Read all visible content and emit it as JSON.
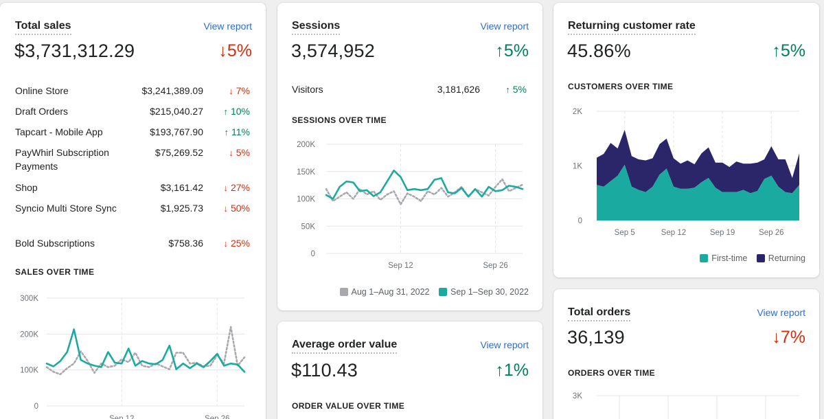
{
  "total_sales": {
    "title": "Total sales",
    "view_report": "View report",
    "value": "$3,731,312.29",
    "delta": "↓5%",
    "rows": [
      {
        "name": "Online Store",
        "amount": "$3,241,389.09",
        "arrow": "↓",
        "change": "7%",
        "dir": "down"
      },
      {
        "name": "Draft Orders",
        "amount": "$215,040.27",
        "arrow": "↑",
        "change": "10%",
        "dir": "up"
      },
      {
        "name": "Tapcart - Mobile App",
        "amount": "$193,767.90",
        "arrow": "↑",
        "change": "11%",
        "dir": "up"
      },
      {
        "name": "PayWhirl Subscription Payments",
        "amount": "$75,269.52",
        "arrow": "↓",
        "change": "5%",
        "dir": "down"
      },
      {
        "name": "Shop",
        "amount": "$3,161.42",
        "arrow": "↓",
        "change": "27%",
        "dir": "down"
      },
      {
        "name": "Syncio Multi Store Sync",
        "amount": "$1,925.73",
        "arrow": "↓",
        "change": "50%",
        "dir": "down"
      },
      {
        "name": "Bold Subscriptions",
        "amount": "$758.36",
        "arrow": "↓",
        "change": "25%",
        "dir": "down"
      }
    ],
    "chart_label": "SALES OVER TIME"
  },
  "sessions": {
    "title": "Sessions",
    "view_report": "View report",
    "value": "3,574,952",
    "delta": "↑5%",
    "visitors_label": "Visitors",
    "visitors_value": "3,181,626",
    "visitors_arrow": "↑",
    "visitors_change": "5%",
    "chart_label": "SESSIONS OVER TIME",
    "legend_prev": "Aug 1–Aug 31, 2022",
    "legend_curr": "Sep 1–Sep 30, 2022"
  },
  "returning": {
    "title": "Returning customer rate",
    "value": "45.86%",
    "delta": "↑5%",
    "chart_label": "CUSTOMERS OVER TIME",
    "legend_first": "First-time",
    "legend_returning": "Returning"
  },
  "aov": {
    "title": "Average order value",
    "view_report": "View report",
    "value": "$110.43",
    "delta": "↑1%",
    "chart_label": "ORDER VALUE OVER TIME"
  },
  "orders": {
    "title": "Total orders",
    "view_report": "View report",
    "value": "36,139",
    "delta": "↓7%",
    "chart_label": "ORDERS OVER TIME"
  },
  "colors": {
    "teal": "#1baaa0",
    "navy": "#2b2669",
    "prev_gray": "#a8a8ad",
    "up": "#008060",
    "down": "#d72c0d",
    "link": "#2c6ecb"
  },
  "chart_data": [
    {
      "type": "line",
      "id": "sales",
      "ylim": [
        0,
        300000
      ],
      "yticks": [
        "0",
        "100K",
        "200K",
        "300K"
      ],
      "xticks": [
        {
          "label": "Sep 12",
          "x": 12
        },
        {
          "label": "Sep 26",
          "x": 26
        }
      ],
      "x": [
        1,
        2,
        3,
        4,
        5,
        6,
        7,
        8,
        9,
        10,
        11,
        12,
        13,
        14,
        15,
        16,
        17,
        18,
        19,
        20,
        21,
        22,
        23,
        24,
        25,
        26,
        27,
        28,
        29,
        30
      ],
      "series": [
        {
          "name": "current",
          "values": [
            118000,
            110000,
            125000,
            150000,
            213000,
            128000,
            118000,
            112000,
            108000,
            150000,
            120000,
            118000,
            160000,
            112000,
            125000,
            118000,
            116000,
            128000,
            168000,
            102000,
            118000,
            105000,
            118000,
            108000,
            125000,
            145000,
            112000,
            118000,
            115000,
            95000
          ]
        },
        {
          "name": "previous",
          "values": [
            108000,
            95000,
            88000,
            105000,
            118000,
            152000,
            125000,
            92000,
            118000,
            108000,
            112000,
            130000,
            122000,
            148000,
            112000,
            108000,
            118000,
            110000,
            102000,
            148000,
            148000,
            118000,
            120000,
            110000,
            112000,
            142000,
            118000,
            220000,
            112000,
            135000
          ]
        }
      ]
    },
    {
      "type": "line",
      "id": "sessions",
      "ylim": [
        0,
        200000
      ],
      "yticks": [
        "0",
        "50K",
        "100K",
        "150K",
        "200K"
      ],
      "xticks": [
        {
          "label": "Sep 12",
          "x": 12
        },
        {
          "label": "Sep 26",
          "x": 26
        }
      ],
      "x": [
        1,
        2,
        3,
        4,
        5,
        6,
        7,
        8,
        9,
        10,
        11,
        12,
        13,
        14,
        15,
        16,
        17,
        18,
        19,
        20,
        21,
        22,
        23,
        24,
        25,
        26,
        27,
        28,
        29,
        30
      ],
      "series": [
        {
          "name": "Sep 1–Sep 30, 2022",
          "values": [
            107000,
            100000,
            122000,
            132000,
            130000,
            114000,
            116000,
            105000,
            112000,
            132000,
            152000,
            140000,
            116000,
            118000,
            116000,
            118000,
            135000,
            138000,
            112000,
            110000,
            120000,
            104000,
            118000,
            104000,
            122000,
            114000,
            116000,
            124000,
            122000,
            118000
          ]
        },
        {
          "name": "Aug 1–Aug 31, 2022",
          "values": [
            118000,
            96000,
            104000,
            112000,
            100000,
            118000,
            108000,
            114000,
            98000,
            108000,
            114000,
            90000,
            110000,
            104000,
            96000,
            114000,
            108000,
            120000,
            104000,
            112000,
            122000,
            104000,
            118000,
            112000,
            106000,
            122000,
            136000,
            114000,
            120000,
            126000
          ]
        }
      ]
    },
    {
      "type": "area",
      "id": "customers",
      "ylim": [
        0,
        2000
      ],
      "yticks": [
        "0",
        "1K",
        "2K"
      ],
      "xticks": [
        {
          "label": "Sep 5",
          "x": 5
        },
        {
          "label": "Sep 12",
          "x": 12
        },
        {
          "label": "Sep 19",
          "x": 19
        },
        {
          "label": "Sep 26",
          "x": 26
        }
      ],
      "x": [
        1,
        2,
        3,
        4,
        5,
        6,
        7,
        8,
        9,
        10,
        11,
        12,
        13,
        14,
        15,
        16,
        17,
        18,
        19,
        20,
        21,
        22,
        23,
        24,
        25,
        26,
        27,
        28,
        29,
        30
      ],
      "series": [
        {
          "name": "First-time",
          "values": [
            650,
            620,
            720,
            820,
            1020,
            620,
            560,
            520,
            620,
            840,
            950,
            620,
            580,
            580,
            600,
            700,
            780,
            600,
            520,
            520,
            520,
            560,
            500,
            540,
            760,
            820,
            620,
            520,
            500,
            650
          ]
        },
        {
          "name": "Returning",
          "values": [
            500,
            600,
            700,
            500,
            640,
            560,
            560,
            580,
            520,
            560,
            550,
            520,
            460,
            520,
            430,
            530,
            560,
            460,
            540,
            460,
            560,
            480,
            540,
            520,
            360,
            540,
            500,
            600,
            280,
            580
          ]
        }
      ]
    },
    {
      "type": "line",
      "id": "orders",
      "ylim": [
        0,
        3000
      ],
      "yticks": [
        "3K"
      ],
      "xticks": [],
      "x": [],
      "series": []
    }
  ]
}
